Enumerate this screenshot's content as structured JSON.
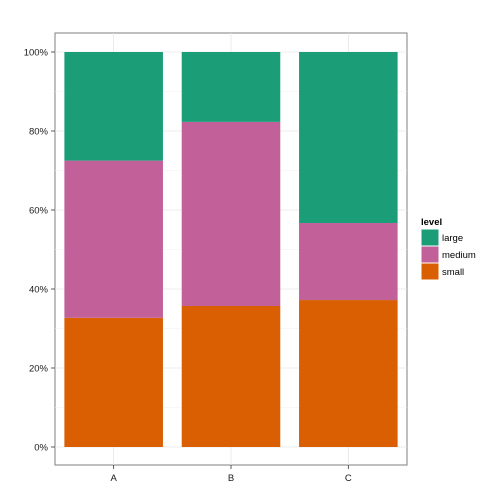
{
  "chart_data": {
    "type": "bar",
    "stacked": true,
    "normalized": true,
    "categories": [
      "A",
      "B",
      "C"
    ],
    "series": [
      {
        "name": "small",
        "values": [
          32.7,
          35.7,
          37.2
        ],
        "color": "#d95f02"
      },
      {
        "name": "medium",
        "values": [
          39.8,
          46.6,
          19.5
        ],
        "color": "#c2609a"
      },
      {
        "name": "large",
        "values": [
          27.5,
          17.7,
          43.3
        ],
        "color": "#1b9e77"
      }
    ],
    "ylim": [
      0,
      100
    ],
    "yticks": [
      "0%",
      "20%",
      "40%",
      "60%",
      "80%",
      "100%"
    ],
    "ytick_values": [
      0,
      20,
      40,
      60,
      80,
      100
    ],
    "xlabel": "",
    "ylabel": "",
    "grid": true,
    "legend": {
      "title": "level",
      "position": "right",
      "entries": [
        "large",
        "medium",
        "small"
      ]
    }
  }
}
